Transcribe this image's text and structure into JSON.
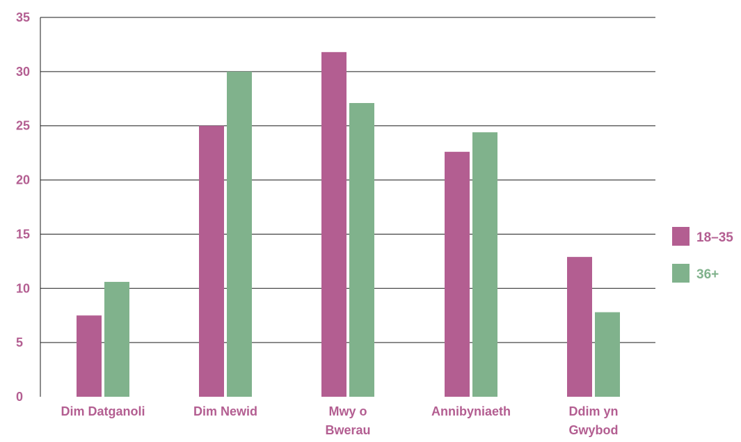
{
  "chart_data": {
    "type": "bar",
    "categories": [
      [
        "Dim Datganoli"
      ],
      [
        "Dim Newid"
      ],
      [
        "Mwy o",
        "Bwerau"
      ],
      [
        "Annibyniaeth"
      ],
      [
        "Ddim yn",
        "Gwybod"
      ]
    ],
    "series": [
      {
        "name": "18–35",
        "color": "#b35e91",
        "values": [
          7.5,
          25,
          31.8,
          22.6,
          12.9
        ]
      },
      {
        "name": "36+",
        "color": "#80b28c",
        "values": [
          10.6,
          30,
          27.1,
          24.4,
          7.8
        ]
      }
    ],
    "ylim": [
      0,
      35
    ],
    "yticks": [
      0,
      5,
      10,
      15,
      20,
      25,
      30,
      35
    ],
    "grid": true,
    "legend_position": "right",
    "label_color": "#b35e91",
    "legend_label_colors": [
      "#b35e91",
      "#80b28c"
    ]
  }
}
